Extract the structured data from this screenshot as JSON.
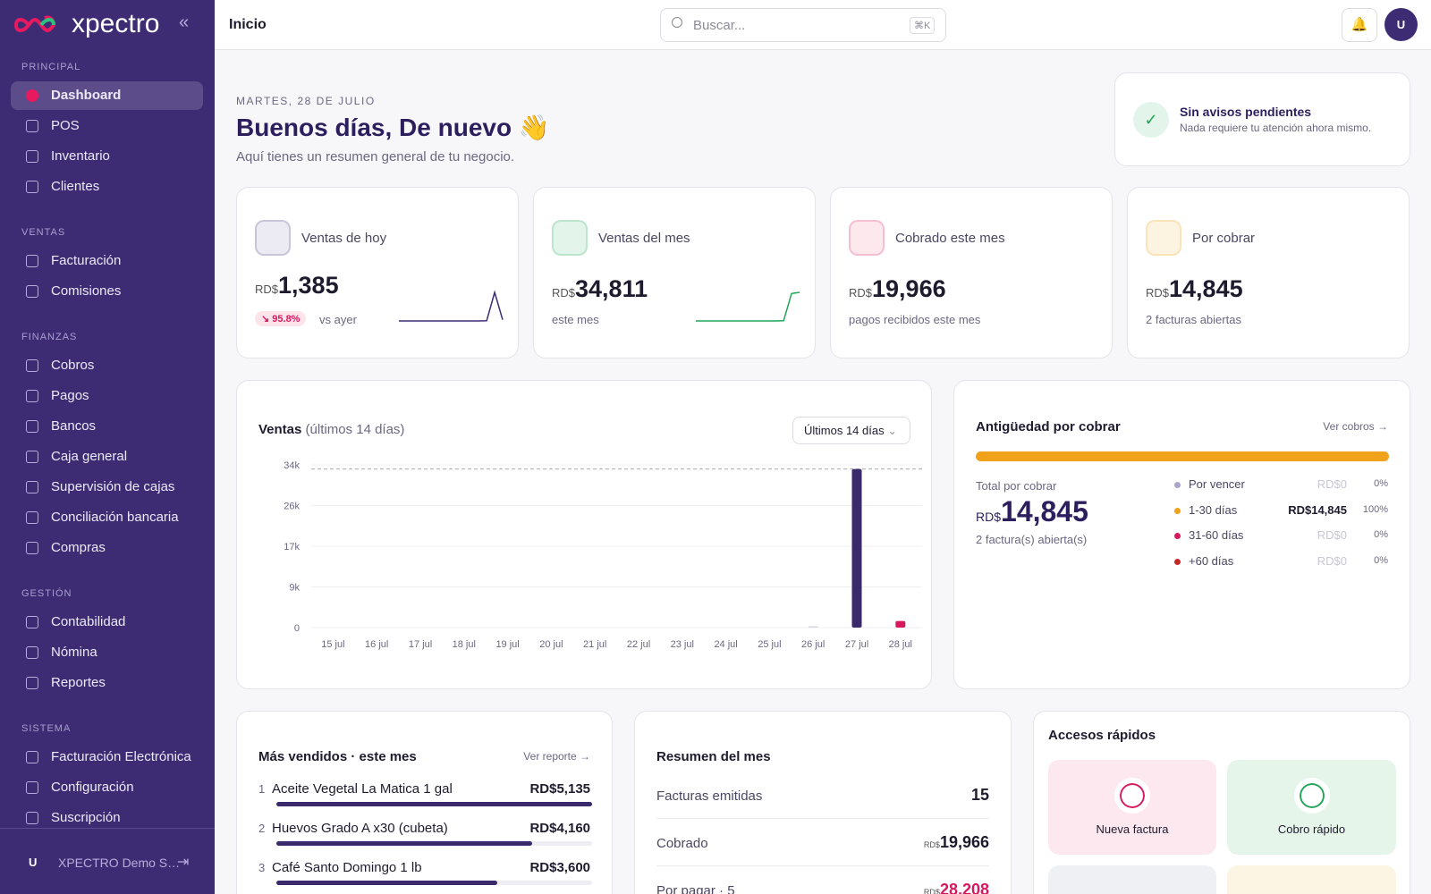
{
  "sidebar": {
    "brand": "xpectro",
    "sections": [
      {
        "title": "PRINCIPAL",
        "items": [
          "Dashboard",
          "POS",
          "Inventario",
          "Clientes"
        ]
      },
      {
        "title": "VENTAS",
        "items": [
          "Facturación",
          "Comisiones"
        ]
      },
      {
        "title": "FINANZAS",
        "items": [
          "Cobros",
          "Pagos",
          "Bancos",
          "Caja general",
          "Supervisión de cajas",
          "Conciliación bancaria",
          "Compras"
        ]
      },
      {
        "title": "GESTIÓN",
        "items": [
          "Contabilidad",
          "Nómina",
          "Reportes"
        ]
      },
      {
        "title": "SISTEMA",
        "items": [
          "Facturación Electrónica",
          "Configuración",
          "Suscripción"
        ]
      }
    ],
    "user_initial": "U",
    "user_name": "XPECTRO Demo S…"
  },
  "topbar": {
    "page_title": "Inicio",
    "search_placeholder": "Buscar...",
    "shortcut": "⌘K",
    "avatar": "U"
  },
  "greeting": {
    "date": "MARTES, 28 DE JULIO",
    "title": "Buenos días, De nuevo 👋",
    "subtitle": "Aquí tienes un resumen general de tu negocio."
  },
  "notice": {
    "title": "Sin avisos pendientes",
    "text": "Nada requiere tu atención ahora mismo."
  },
  "kpis": [
    {
      "label": "Ventas de hoy",
      "currency": "RD$",
      "value": "1,385",
      "badge": "↘ 95.8%",
      "note": "vs ayer",
      "spark": [
        0,
        0,
        0,
        0,
        0,
        0,
        0,
        0,
        0,
        0,
        0,
        300,
        33126,
        1385
      ]
    },
    {
      "label": "Ventas del mes",
      "currency": "RD$",
      "value": "34,811",
      "note": "este mes",
      "spark": [
        0,
        0,
        0,
        0,
        0,
        0,
        0,
        0,
        0,
        0,
        0,
        300,
        33426,
        34811
      ]
    },
    {
      "label": "Cobrado este mes",
      "currency": "RD$",
      "value": "19,966",
      "note": "pagos recibidos este mes"
    },
    {
      "label": "Por cobrar",
      "currency": "RD$",
      "value": "14,845",
      "note": "2 facturas abiertas"
    }
  ],
  "chart_data": {
    "type": "bar",
    "title": "Ventas",
    "subtitle": "(últimos 14 días)",
    "range_selector": "Últimos 14 días",
    "categories": [
      "15 jul",
      "16 jul",
      "17 jul",
      "18 jul",
      "19 jul",
      "20 jul",
      "21 jul",
      "22 jul",
      "23 jul",
      "24 jul",
      "25 jul",
      "26 jul",
      "27 jul",
      "28 jul"
    ],
    "values": [
      0,
      0,
      0,
      0,
      0,
      0,
      0,
      0,
      0,
      0,
      0,
      300,
      33126,
      1385
    ],
    "colors": [
      "#3b2a6b",
      "#3b2a6b",
      "#3b2a6b",
      "#3b2a6b",
      "#3b2a6b",
      "#3b2a6b",
      "#3b2a6b",
      "#3b2a6b",
      "#3b2a6b",
      "#3b2a6b",
      "#3b2a6b",
      "#d9d6e4",
      "#3b2a6b",
      "#d6195f"
    ],
    "ylim": [
      0,
      34000
    ],
    "yticks": [
      0,
      {
        "value": 8500,
        "label": "9k"
      },
      {
        "value": 17000,
        "label": "17k"
      },
      {
        "value": 25500,
        "label": "26k"
      },
      {
        "value": 34000,
        "label": "34k"
      }
    ],
    "grid": true
  },
  "aging": {
    "title": "Antigüedad por cobrar",
    "link": "Ver cobros →",
    "total_label": "Total por cobrar",
    "currency": "RD$",
    "total": "14,845",
    "note": "2 factura(s) abierta(s)",
    "buckets": [
      {
        "name": "Por vencer",
        "color": "#aaa4ca",
        "amount": "RD$0",
        "percent": 0,
        "percent_label": "0%"
      },
      {
        "name": "1-30 días",
        "color": "#f0a31a",
        "amount": "RD$14,845",
        "percent": 100,
        "percent_label": "100%"
      },
      {
        "name": "31-60 días",
        "color": "#d6195f",
        "amount": "RD$0",
        "percent": 0,
        "percent_label": "0%"
      },
      {
        "name": "+60 días",
        "color": "#c62828",
        "amount": "RD$0",
        "percent": 0,
        "percent_label": "0%"
      }
    ]
  },
  "top_products": {
    "title": "Más vendidos · este mes",
    "link": "Ver reporte →",
    "items": [
      {
        "rank": 1,
        "name": "Aceite Vegetal La Matica 1 gal",
        "value": 5135,
        "value_label": "RD$5,135"
      },
      {
        "rank": 2,
        "name": "Huevos Grado A x30 (cubeta)",
        "value": 4160,
        "value_label": "RD$4,160"
      },
      {
        "rank": 3,
        "name": "Café Santo Domingo 1 lb",
        "value": 3600,
        "value_label": "RD$3,600"
      }
    ]
  },
  "month_summary": {
    "title": "Resumen del mes",
    "rows": [
      {
        "label": "Facturas emitidas",
        "value": "15"
      },
      {
        "label": "Cobrado",
        "currency": "RD$",
        "value": "19,966"
      },
      {
        "label": "Por pagar · 5",
        "currency": "RD$",
        "value": "28,208"
      }
    ]
  },
  "quick_access": {
    "title": "Accesos rápidos",
    "items": [
      "Nueva factura",
      "Cobro rápido"
    ]
  }
}
